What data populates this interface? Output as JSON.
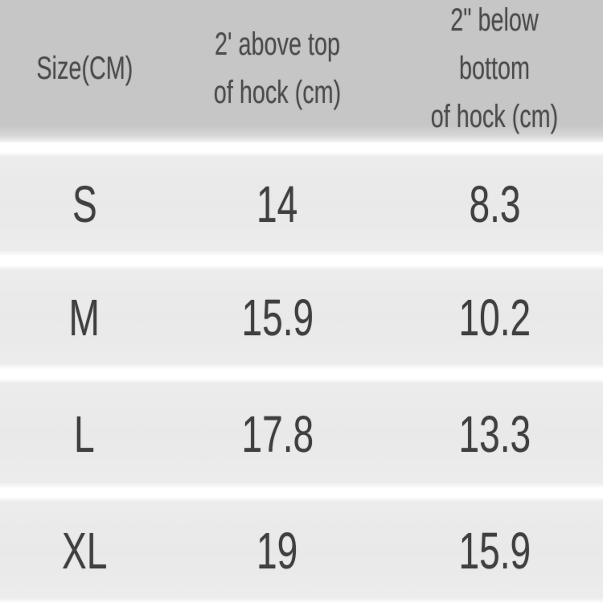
{
  "table": {
    "columns": [
      {
        "label": "Size(CM)",
        "line1": "Size(CM)",
        "line2": ""
      },
      {
        "label": "2' above top of hock (cm)",
        "line1": "2' above top",
        "line2": "of hock (cm)"
      },
      {
        "label": "2\" below bottom of hock (cm)",
        "line1": "2\" below bottom",
        "line2": "of hock (cm)"
      }
    ],
    "rows": [
      {
        "size": "S",
        "above_top_of_hock_cm": "14",
        "below_bottom_of_hock_cm": "8.3"
      },
      {
        "size": "M",
        "above_top_of_hock_cm": "15.9",
        "below_bottom_of_hock_cm": "10.2"
      },
      {
        "size": "L",
        "above_top_of_hock_cm": "17.8",
        "below_bottom_of_hock_cm": "13.3"
      },
      {
        "size": "XL",
        "above_top_of_hock_cm": "19",
        "below_bottom_of_hock_cm": "15.9"
      }
    ]
  },
  "colors": {
    "header_background": "#c6c6c6",
    "row_background": "#ececec",
    "row_divider": "#ffffff",
    "header_text": "#4c4c4c",
    "data_text": "#404040"
  },
  "chart_data": {
    "type": "table",
    "title": "",
    "columns": [
      "Size(CM)",
      "2' above top of hock (cm)",
      "2\" below bottom of hock (cm)"
    ],
    "rows": [
      [
        "S",
        14,
        8.3
      ],
      [
        "M",
        15.9,
        10.2
      ],
      [
        "L",
        17.8,
        13.3
      ],
      [
        "XL",
        19,
        15.9
      ]
    ],
    "units": "cm",
    "layout_hints": {
      "header_background": "#c6c6c6",
      "row_background": "#ececec",
      "divider": "white horizontal bands",
      "text_alignment": "center"
    }
  }
}
